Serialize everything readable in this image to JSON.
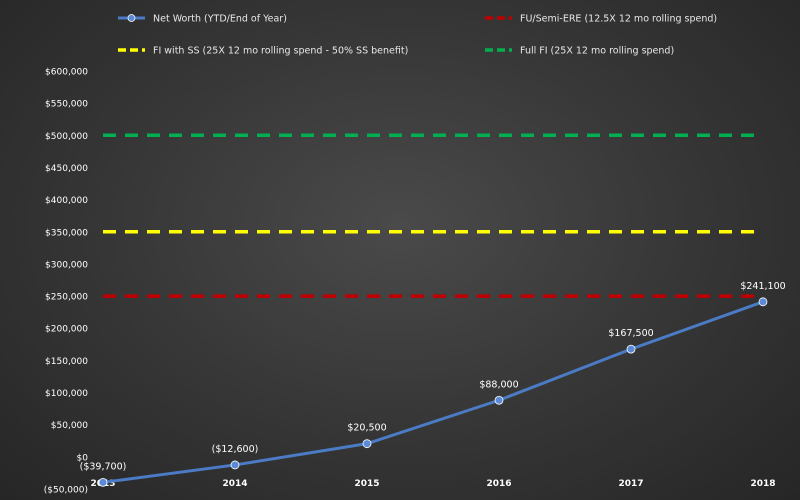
{
  "chart_data": {
    "type": "line",
    "title": "",
    "xlabel": "",
    "ylabel": "",
    "categories": [
      "2013",
      "2014",
      "2015",
      "2016",
      "2017",
      "2018"
    ],
    "ylim": [
      -50000,
      600000
    ],
    "y_ticks": [
      -50000,
      0,
      50000,
      100000,
      150000,
      200000,
      250000,
      300000,
      350000,
      400000,
      450000,
      500000,
      550000,
      600000
    ],
    "y_tick_labels": [
      "($50,000)",
      "$0",
      "$50,000",
      "$100,000",
      "$150,000",
      "$200,000",
      "$250,000",
      "$300,000",
      "$350,000",
      "$400,000",
      "$450,000",
      "$500,000",
      "$550,000",
      "$600,000"
    ],
    "grid": false,
    "legend_position": "top",
    "series": [
      {
        "name": "Net Worth (YTD/End of Year)",
        "style": "solid-markers",
        "color": "#4a7bc4",
        "values": [
          -39700,
          -12600,
          20500,
          88000,
          167500,
          241100
        ],
        "labels": [
          "($39,700)",
          "($12,600)",
          "$20,500",
          "$88,000",
          "$167,500",
          "$241,100"
        ]
      },
      {
        "name": "FU/Semi-ERE (12.5X 12 mo rolling spend)",
        "style": "dashed",
        "color": "#c00000",
        "values": [
          250000,
          250000,
          250000,
          250000,
          250000,
          250000
        ]
      },
      {
        "name": "FI with SS (25X 12 mo rolling spend - 50% SS benefit)",
        "style": "dashed",
        "color": "#ffff00",
        "values": [
          350000,
          350000,
          350000,
          350000,
          350000,
          350000
        ]
      },
      {
        "name": "Full FI (25X 12 mo rolling spend)",
        "style": "dashed",
        "color": "#00b050",
        "values": [
          500000,
          500000,
          500000,
          500000,
          500000,
          500000
        ]
      }
    ]
  }
}
